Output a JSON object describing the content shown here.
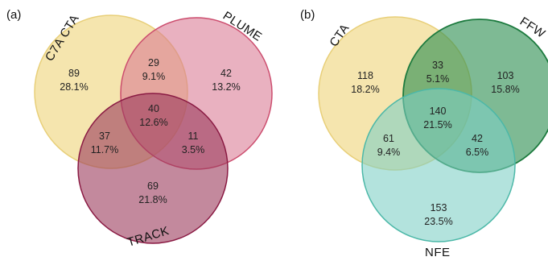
{
  "panels": [
    {
      "label": "(a)",
      "sets": [
        {
          "name": "C7A CTA",
          "fill": "#f1db8f",
          "stroke": "#e8cf79"
        },
        {
          "name": "PLUME",
          "fill": "#d97892",
          "stroke": "#cc4d6e"
        },
        {
          "name": "TRACK",
          "fill": "#9b3a5c",
          "stroke": "#8a1a43"
        }
      ],
      "regions": {
        "only_1": {
          "count": "89",
          "pct": "28.1%"
        },
        "only_2": {
          "count": "42",
          "pct": "13.2%"
        },
        "only_3": {
          "count": "69",
          "pct": "21.8%"
        },
        "r12": {
          "count": "29",
          "pct": "9.1%"
        },
        "r13": {
          "count": "37",
          "pct": "11.7%"
        },
        "r23": {
          "count": "11",
          "pct": "3.5%"
        },
        "r123": {
          "count": "40",
          "pct": "12.6%"
        }
      }
    },
    {
      "label": "(b)",
      "sets": [
        {
          "name": "CTA",
          "fill": "#f1db8f",
          "stroke": "#e8cf79"
        },
        {
          "name": "FFW",
          "fill": "#2f8f52",
          "stroke": "#1c7a3e"
        },
        {
          "name": "NFE",
          "fill": "#7ccfc4",
          "stroke": "#4cb8a8"
        }
      ],
      "regions": {
        "only_1": {
          "count": "118",
          "pct": "18.2%"
        },
        "only_2": {
          "count": "103",
          "pct": "15.8%"
        },
        "only_3": {
          "count": "153",
          "pct": "23.5%"
        },
        "r12": {
          "count": "33",
          "pct": "5.1%"
        },
        "r13": {
          "count": "61",
          "pct": "9.4%"
        },
        "r23": {
          "count": "42",
          "pct": "6.5%"
        },
        "r123": {
          "count": "140",
          "pct": "21.5%"
        }
      }
    }
  ]
}
